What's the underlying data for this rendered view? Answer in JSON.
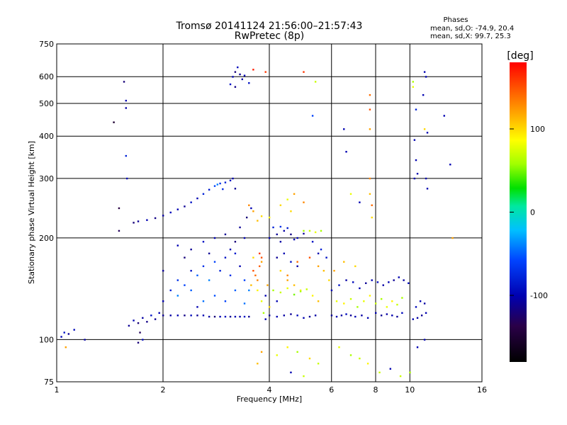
{
  "chart_data": {
    "type": "scatter",
    "title": "Tromsø 20141124 21:56:00–21:57:43",
    "subtitle": "RwPretec (8p)",
    "xlabel": "Frequency [MHz]",
    "ylabel": "Stationary phase Virtual Height [km]",
    "x_scale": "log",
    "y_scale": "log",
    "xlim": [
      1,
      16
    ],
    "ylim": [
      75,
      750
    ],
    "x_ticks": [
      1,
      2,
      4,
      6,
      8,
      10,
      16
    ],
    "y_ticks": [
      75,
      100,
      200,
      300,
      400,
      500,
      600,
      750
    ],
    "grid": true,
    "stats_title": "Phases",
    "stats_lines": [
      "mean, sd,O: -74.9, 20.4",
      "mean, sd,X:  99.7, 25.3"
    ],
    "colorbar": {
      "label": "[deg]",
      "ticks": [
        100,
        0,
        -100
      ],
      "range": [
        -180,
        180
      ]
    },
    "points": [
      [
        1.03,
        102,
        -100
      ],
      [
        1.05,
        105,
        -90
      ],
      [
        1.08,
        104,
        -110
      ],
      [
        1.12,
        107,
        -95
      ],
      [
        1.2,
        100,
        -105
      ],
      [
        1.06,
        95,
        120
      ],
      [
        1.45,
        440,
        -150
      ],
      [
        1.55,
        580,
        -120
      ],
      [
        1.57,
        510,
        -100
      ],
      [
        1.57,
        485,
        -105
      ],
      [
        1.57,
        350,
        -80
      ],
      [
        1.58,
        300,
        -95
      ],
      [
        1.5,
        210,
        -130
      ],
      [
        1.5,
        245,
        -140
      ],
      [
        1.6,
        110,
        -110
      ],
      [
        1.65,
        114,
        -100
      ],
      [
        1.7,
        112,
        -120
      ],
      [
        1.75,
        116,
        -105
      ],
      [
        1.8,
        113,
        -115
      ],
      [
        1.85,
        118,
        -90
      ],
      [
        1.9,
        115,
        -110
      ],
      [
        1.95,
        120,
        -100
      ],
      [
        1.7,
        98,
        -120
      ],
      [
        1.75,
        100,
        -95
      ],
      [
        1.72,
        105,
        -130
      ],
      [
        1.65,
        222,
        -120
      ],
      [
        1.7,
        224,
        -110
      ],
      [
        1.8,
        226,
        -100
      ],
      [
        1.9,
        229,
        -115
      ],
      [
        2.0,
        233,
        -105
      ],
      [
        2.1,
        238,
        -95
      ],
      [
        2.2,
        243,
        -100
      ],
      [
        2.3,
        248,
        -110
      ],
      [
        2.4,
        255,
        -90
      ],
      [
        2.5,
        262,
        -100
      ],
      [
        2.6,
        270,
        -80
      ],
      [
        2.7,
        278,
        -85
      ],
      [
        2.8,
        285,
        -60
      ],
      [
        2.9,
        290,
        -70
      ],
      [
        3.0,
        292,
        -80
      ],
      [
        3.1,
        296,
        -90
      ],
      [
        3.15,
        300,
        -100
      ],
      [
        3.2,
        280,
        -110
      ],
      [
        2.85,
        288,
        -40
      ],
      [
        2.95,
        279,
        -75
      ],
      [
        3.15,
        600,
        -100
      ],
      [
        3.2,
        620,
        -120
      ],
      [
        3.25,
        640,
        -95
      ],
      [
        3.3,
        610,
        -110
      ],
      [
        3.35,
        590,
        -105
      ],
      [
        3.4,
        605,
        -100
      ],
      [
        3.1,
        570,
        -90
      ],
      [
        3.2,
        560,
        -115
      ],
      [
        3.5,
        575,
        -90
      ],
      [
        3.6,
        630,
        170
      ],
      [
        2.0,
        118,
        -110
      ],
      [
        2.1,
        118,
        -105
      ],
      [
        2.2,
        118,
        -100
      ],
      [
        2.3,
        118,
        -115
      ],
      [
        2.4,
        118,
        -95
      ],
      [
        2.5,
        118,
        -110
      ],
      [
        2.6,
        118,
        -100
      ],
      [
        2.7,
        117,
        -105
      ],
      [
        2.8,
        117,
        -120
      ],
      [
        2.9,
        117,
        -100
      ],
      [
        3.0,
        117,
        -95
      ],
      [
        3.1,
        117,
        -110
      ],
      [
        3.2,
        117,
        -100
      ],
      [
        3.3,
        117,
        -105
      ],
      [
        3.4,
        117,
        -90
      ],
      [
        3.5,
        117,
        -110
      ],
      [
        2.0,
        130,
        -100
      ],
      [
        2.1,
        140,
        -80
      ],
      [
        2.2,
        150,
        -70
      ],
      [
        2.3,
        145,
        -60
      ],
      [
        2.4,
        160,
        -90
      ],
      [
        2.5,
        155,
        -50
      ],
      [
        2.6,
        165,
        -70
      ],
      [
        2.7,
        150,
        -40
      ],
      [
        2.8,
        170,
        -60
      ],
      [
        2.9,
        160,
        -80
      ],
      [
        3.0,
        175,
        -90
      ],
      [
        3.1,
        155,
        -70
      ],
      [
        3.2,
        180,
        -85
      ],
      [
        3.3,
        165,
        -100
      ],
      [
        3.4,
        150,
        -60
      ],
      [
        3.5,
        140,
        -40
      ],
      [
        2.2,
        135,
        -40
      ],
      [
        2.4,
        140,
        -50
      ],
      [
        2.6,
        130,
        -45
      ],
      [
        2.8,
        135,
        -55
      ],
      [
        3.0,
        130,
        -60
      ],
      [
        3.2,
        140,
        -50
      ],
      [
        3.4,
        128,
        -45
      ],
      [
        2.5,
        125,
        -100
      ],
      [
        2.0,
        160,
        -110
      ],
      [
        2.2,
        190,
        -100
      ],
      [
        2.4,
        185,
        -110
      ],
      [
        2.6,
        195,
        -90
      ],
      [
        2.8,
        200,
        -100
      ],
      [
        3.0,
        205,
        -110
      ],
      [
        3.2,
        195,
        -120
      ],
      [
        3.4,
        200,
        -100
      ],
      [
        2.3,
        175,
        -120
      ],
      [
        2.7,
        180,
        -110
      ],
      [
        3.1,
        185,
        -100
      ],
      [
        3.3,
        215,
        -110
      ],
      [
        3.45,
        230,
        -120
      ],
      [
        3.55,
        245,
        -100
      ],
      [
        3.6,
        160,
        150
      ],
      [
        3.65,
        155,
        140
      ],
      [
        3.7,
        150,
        130
      ],
      [
        3.75,
        165,
        145
      ],
      [
        3.8,
        170,
        120
      ],
      [
        3.55,
        145,
        110
      ],
      [
        3.6,
        175,
        100
      ],
      [
        3.7,
        140,
        90
      ],
      [
        3.8,
        130,
        80
      ],
      [
        3.9,
        135,
        -100
      ],
      [
        4.0,
        125,
        100
      ],
      [
        3.85,
        120,
        60
      ],
      [
        3.95,
        145,
        120
      ],
      [
        3.5,
        250,
        130
      ],
      [
        3.6,
        240,
        120
      ],
      [
        3.7,
        225,
        110
      ],
      [
        3.8,
        232,
        100
      ],
      [
        4.0,
        200,
        -100
      ],
      [
        4.2,
        205,
        -110
      ],
      [
        4.4,
        210,
        -105
      ],
      [
        4.6,
        205,
        -115
      ],
      [
        4.8,
        200,
        -100
      ],
      [
        5.0,
        206,
        -110
      ],
      [
        4.3,
        195,
        -105
      ],
      [
        4.7,
        198,
        -100
      ],
      [
        4.1,
        215,
        -80
      ],
      [
        4.3,
        216,
        -70
      ],
      [
        4.5,
        214,
        -85
      ],
      [
        5.0,
        210,
        60
      ],
      [
        5.2,
        210,
        70
      ],
      [
        5.4,
        208,
        80
      ],
      [
        5.6,
        210,
        60
      ],
      [
        4.2,
        175,
        -110
      ],
      [
        4.4,
        180,
        -100
      ],
      [
        4.6,
        170,
        -90
      ],
      [
        4.8,
        165,
        -105
      ],
      [
        4.3,
        160,
        100
      ],
      [
        4.5,
        150,
        120
      ],
      [
        4.7,
        145,
        110
      ],
      [
        4.9,
        140,
        90
      ],
      [
        4.0,
        118,
        -110
      ],
      [
        4.2,
        117,
        -100
      ],
      [
        4.4,
        118,
        -105
      ],
      [
        4.6,
        119,
        -110
      ],
      [
        4.8,
        118,
        -95
      ],
      [
        5.0,
        116,
        -100
      ],
      [
        5.2,
        117,
        -110
      ],
      [
        5.4,
        118,
        -105
      ],
      [
        4.1,
        140,
        60
      ],
      [
        4.3,
        138,
        70
      ],
      [
        4.5,
        142,
        80
      ],
      [
        4.7,
        136,
        50
      ],
      [
        4.9,
        139,
        60
      ],
      [
        5.1,
        141,
        70
      ],
      [
        5.3,
        135,
        90
      ],
      [
        5.5,
        130,
        110
      ],
      [
        4.5,
        155,
        130
      ],
      [
        4.8,
        170,
        140
      ],
      [
        5.2,
        175,
        150
      ],
      [
        5.5,
        165,
        120
      ],
      [
        5.7,
        160,
        110
      ],
      [
        5.9,
        150,
        100
      ],
      [
        5.3,
        195,
        -90
      ],
      [
        5.6,
        185,
        -80
      ],
      [
        4.2,
        90,
        80
      ],
      [
        4.5,
        95,
        90
      ],
      [
        4.8,
        92,
        60
      ],
      [
        5.2,
        88,
        100
      ],
      [
        5.5,
        85,
        70
      ],
      [
        4.6,
        80,
        -100
      ],
      [
        5.0,
        78,
        70
      ],
      [
        3.8,
        92,
        120
      ],
      [
        3.7,
        85,
        110
      ],
      [
        4.3,
        250,
        100
      ],
      [
        4.5,
        260,
        80
      ],
      [
        4.7,
        270,
        120
      ],
      [
        5.0,
        255,
        130
      ],
      [
        4.0,
        230,
        90
      ],
      [
        4.6,
        240,
        100
      ],
      [
        6.0,
        118,
        -110
      ],
      [
        6.2,
        117,
        -100
      ],
      [
        6.4,
        118,
        -105
      ],
      [
        6.6,
        119,
        -95
      ],
      [
        6.8,
        118,
        -110
      ],
      [
        7.0,
        117,
        -100
      ],
      [
        7.3,
        118,
        -105
      ],
      [
        7.6,
        116,
        -100
      ],
      [
        6.0,
        140,
        -100
      ],
      [
        6.3,
        145,
        -90
      ],
      [
        6.6,
        150,
        -105
      ],
      [
        6.9,
        148,
        -95
      ],
      [
        7.2,
        142,
        -100
      ],
      [
        7.5,
        147,
        -110
      ],
      [
        7.8,
        150,
        -100
      ],
      [
        8.1,
        148,
        -95
      ],
      [
        8.4,
        145,
        -105
      ],
      [
        8.7,
        148,
        -100
      ],
      [
        9.0,
        150,
        -110
      ],
      [
        9.3,
        153,
        -100
      ],
      [
        9.6,
        150,
        -105
      ],
      [
        9.9,
        147,
        -95
      ],
      [
        6.2,
        130,
        80
      ],
      [
        6.5,
        128,
        90
      ],
      [
        6.8,
        132,
        70
      ],
      [
        7.1,
        125,
        60
      ],
      [
        7.4,
        130,
        80
      ],
      [
        7.7,
        135,
        90
      ],
      [
        8.0,
        128,
        70
      ],
      [
        8.3,
        132,
        60
      ],
      [
        8.6,
        125,
        80
      ],
      [
        8.9,
        130,
        90
      ],
      [
        9.2,
        127,
        70
      ],
      [
        9.5,
        133,
        60
      ],
      [
        6.1,
        160,
        120
      ],
      [
        6.5,
        170,
        110
      ],
      [
        7.0,
        165,
        100
      ],
      [
        8.0,
        120,
        -100
      ],
      [
        8.3,
        118,
        -110
      ],
      [
        8.6,
        119,
        -105
      ],
      [
        8.9,
        118,
        -100
      ],
      [
        9.2,
        117,
        -110
      ],
      [
        9.5,
        120,
        -95
      ],
      [
        10.2,
        115,
        -100
      ],
      [
        10.5,
        116,
        -105
      ],
      [
        10.8,
        118,
        -110
      ],
      [
        11.1,
        120,
        -100
      ],
      [
        10.4,
        125,
        -95
      ],
      [
        10.7,
        130,
        -100
      ],
      [
        11.0,
        128,
        -105
      ],
      [
        6.3,
        95,
        80
      ],
      [
        6.8,
        90,
        60
      ],
      [
        7.2,
        88,
        70
      ],
      [
        7.6,
        85,
        90
      ],
      [
        8.2,
        80,
        70
      ],
      [
        8.8,
        82,
        -100
      ],
      [
        9.4,
        78,
        70
      ],
      [
        10.0,
        80,
        60
      ],
      [
        10.5,
        95,
        -100
      ],
      [
        11.0,
        100,
        -100
      ],
      [
        7.7,
        530,
        140
      ],
      [
        7.7,
        480,
        150
      ],
      [
        7.7,
        420,
        120
      ],
      [
        7.7,
        300,
        130
      ],
      [
        7.7,
        270,
        110
      ],
      [
        7.8,
        250,
        140
      ],
      [
        7.8,
        230,
        100
      ],
      [
        10.2,
        580,
        60
      ],
      [
        10.2,
        560,
        80
      ],
      [
        10.4,
        480,
        -80
      ],
      [
        10.3,
        390,
        -100
      ],
      [
        10.4,
        340,
        -100
      ],
      [
        10.3,
        300,
        -100
      ],
      [
        10.5,
        310,
        -100
      ],
      [
        11.0,
        620,
        -100
      ],
      [
        11.1,
        600,
        -100
      ],
      [
        10.9,
        530,
        -100
      ],
      [
        11.0,
        420,
        100
      ],
      [
        11.2,
        410,
        -100
      ],
      [
        11.1,
        300,
        -100
      ],
      [
        11.2,
        280,
        -100
      ],
      [
        12.5,
        460,
        -100
      ],
      [
        13.0,
        330,
        -100
      ],
      [
        13.2,
        200,
        120
      ],
      [
        6.5,
        420,
        -100
      ],
      [
        6.6,
        360,
        -100
      ],
      [
        5.3,
        460,
        -60
      ],
      [
        5.0,
        620,
        160
      ],
      [
        5.4,
        580,
        70
      ],
      [
        6.8,
        270,
        80
      ],
      [
        7.2,
        255,
        -100
      ],
      [
        3.9,
        620,
        160
      ],
      [
        5.5,
        180,
        -100
      ],
      [
        5.8,
        175,
        -90
      ],
      [
        4.2,
        130,
        -100
      ],
      [
        3.9,
        115,
        -100
      ],
      [
        3.8,
        175,
        150
      ],
      [
        3.75,
        180,
        160
      ]
    ]
  }
}
